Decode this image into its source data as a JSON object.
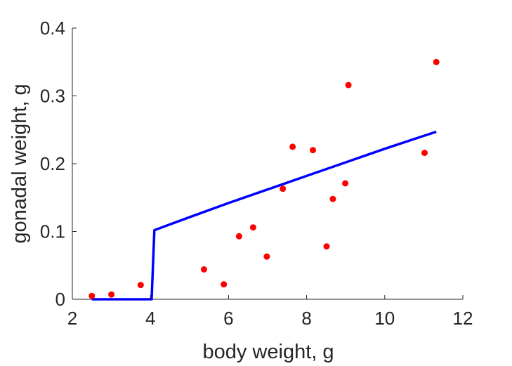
{
  "chart_data": {
    "type": "scatter",
    "xlabel": "body weight, g",
    "ylabel": "gonadal weight, g",
    "xlim": [
      2,
      12
    ],
    "ylim": [
      0,
      0.4
    ],
    "xticks": [
      "2",
      "4",
      "6",
      "8",
      "10",
      "12"
    ],
    "yticks": [
      "0",
      "0.1",
      "0.2",
      "0.3",
      "0.4"
    ],
    "grid": false,
    "series": [
      {
        "type": "scatter",
        "color": "#ff0000",
        "points": [
          {
            "x": 2.5,
            "y": 0.005
          },
          {
            "x": 3.0,
            "y": 0.007
          },
          {
            "x": 3.75,
            "y": 0.021
          },
          {
            "x": 5.37,
            "y": 0.044
          },
          {
            "x": 5.88,
            "y": 0.022
          },
          {
            "x": 6.27,
            "y": 0.093
          },
          {
            "x": 6.63,
            "y": 0.106
          },
          {
            "x": 6.98,
            "y": 0.063
          },
          {
            "x": 7.39,
            "y": 0.163
          },
          {
            "x": 7.64,
            "y": 0.225
          },
          {
            "x": 8.16,
            "y": 0.22
          },
          {
            "x": 8.51,
            "y": 0.078
          },
          {
            "x": 8.67,
            "y": 0.148
          },
          {
            "x": 8.99,
            "y": 0.171
          },
          {
            "x": 9.07,
            "y": 0.316
          },
          {
            "x": 11.02,
            "y": 0.216
          },
          {
            "x": 11.32,
            "y": 0.35
          }
        ]
      },
      {
        "type": "line",
        "color": "#0000ff",
        "points": [
          {
            "x": 2.5,
            "y": 0.0
          },
          {
            "x": 4.03,
            "y": 0.0
          },
          {
            "x": 4.1,
            "y": 0.102
          },
          {
            "x": 5.0,
            "y": 0.121
          },
          {
            "x": 6.0,
            "y": 0.142
          },
          {
            "x": 7.0,
            "y": 0.162
          },
          {
            "x": 8.0,
            "y": 0.182
          },
          {
            "x": 9.0,
            "y": 0.202
          },
          {
            "x": 10.0,
            "y": 0.222
          },
          {
            "x": 11.0,
            "y": 0.241
          },
          {
            "x": 11.32,
            "y": 0.247
          }
        ]
      }
    ]
  }
}
